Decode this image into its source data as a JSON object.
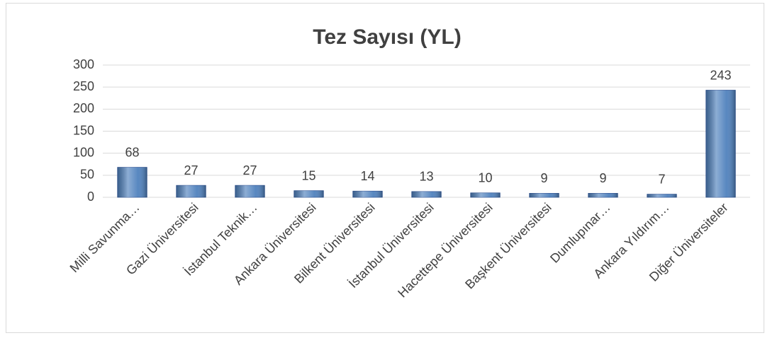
{
  "chart_data": {
    "type": "bar",
    "title": "Tez Sayısı (YL)",
    "categories": [
      "Milli Savunma…",
      "Gazi Üniversitesi",
      "İstanbul Teknik…",
      "Ankara Üniversitesi",
      "Bilkent Üniversitesi",
      "İstanbul Üniversitesi",
      "Hacettepe Üniversitesi",
      "Başkent Üniversitesi",
      "Dumlupınar…",
      "Ankara Yıldırım…",
      "Diğer Üniversiteler"
    ],
    "values": [
      68,
      27,
      27,
      15,
      14,
      13,
      10,
      9,
      9,
      7,
      243
    ],
    "color": "#4f81bd",
    "ylim": [
      0,
      300
    ],
    "yticks": [
      0,
      50,
      100,
      150,
      200,
      250,
      300
    ],
    "grid": true
  }
}
